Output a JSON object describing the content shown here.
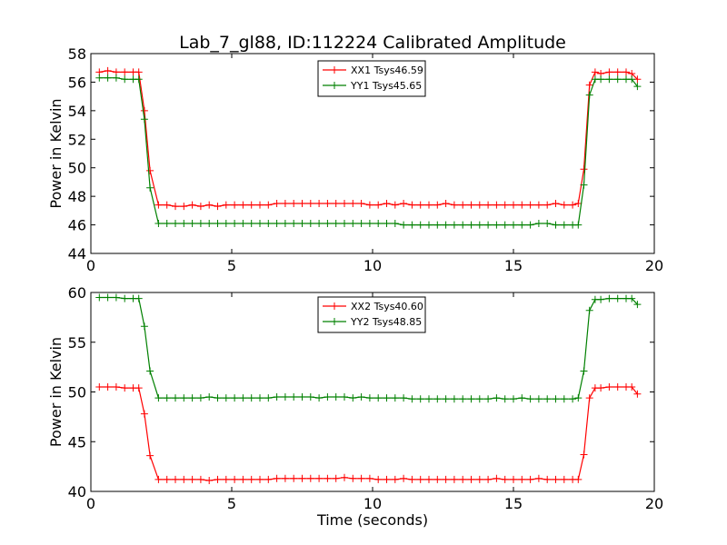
{
  "chart_data": [
    {
      "type": "line",
      "title": "Lab_7_gl88, ID:112224 Calibrated Amplitude",
      "xlabel": "",
      "ylabel": "Power in Kelvin",
      "xlim": [
        0,
        20
      ],
      "ylim": [
        44,
        58
      ],
      "xticks": [
        0,
        5,
        10,
        15,
        20
      ],
      "yticks": [
        44,
        46,
        48,
        50,
        52,
        54,
        56,
        58
      ],
      "legend_position": "top-center",
      "grid": false,
      "x": [
        0.3,
        0.6,
        0.9,
        1.2,
        1.5,
        1.7,
        1.9,
        2.1,
        2.4,
        2.7,
        3.0,
        3.3,
        3.6,
        3.9,
        4.2,
        4.5,
        4.8,
        5.1,
        5.4,
        5.7,
        6.0,
        6.3,
        6.6,
        6.9,
        7.2,
        7.5,
        7.8,
        8.1,
        8.4,
        8.7,
        9.0,
        9.3,
        9.6,
        9.9,
        10.2,
        10.5,
        10.8,
        11.1,
        11.4,
        11.7,
        12.0,
        12.3,
        12.6,
        12.9,
        13.2,
        13.5,
        13.8,
        14.1,
        14.4,
        14.7,
        15.0,
        15.3,
        15.6,
        15.9,
        16.2,
        16.5,
        16.8,
        17.1,
        17.3,
        17.5,
        17.7,
        17.9,
        18.1,
        18.4,
        18.7,
        19.0,
        19.2,
        19.4
      ],
      "series": [
        {
          "name": "XX1 Tsys46.59",
          "color": "#ff0000",
          "values": [
            56.7,
            56.8,
            56.7,
            56.7,
            56.7,
            56.7,
            54.0,
            49.8,
            47.4,
            47.4,
            47.3,
            47.3,
            47.4,
            47.3,
            47.4,
            47.3,
            47.4,
            47.4,
            47.4,
            47.4,
            47.4,
            47.4,
            47.5,
            47.5,
            47.5,
            47.5,
            47.5,
            47.5,
            47.5,
            47.5,
            47.5,
            47.5,
            47.5,
            47.4,
            47.4,
            47.5,
            47.4,
            47.5,
            47.4,
            47.4,
            47.4,
            47.4,
            47.5,
            47.4,
            47.4,
            47.4,
            47.4,
            47.4,
            47.4,
            47.4,
            47.4,
            47.4,
            47.4,
            47.4,
            47.4,
            47.5,
            47.4,
            47.4,
            47.5,
            49.9,
            55.8,
            56.7,
            56.6,
            56.7,
            56.7,
            56.7,
            56.6,
            56.2
          ]
        },
        {
          "name": "YY1 Tsys45.65",
          "color": "#008000",
          "values": [
            56.3,
            56.3,
            56.3,
            56.2,
            56.2,
            56.2,
            53.4,
            48.6,
            46.1,
            46.1,
            46.1,
            46.1,
            46.1,
            46.1,
            46.1,
            46.1,
            46.1,
            46.1,
            46.1,
            46.1,
            46.1,
            46.1,
            46.1,
            46.1,
            46.1,
            46.1,
            46.1,
            46.1,
            46.1,
            46.1,
            46.1,
            46.1,
            46.1,
            46.1,
            46.1,
            46.1,
            46.1,
            46.0,
            46.0,
            46.0,
            46.0,
            46.0,
            46.0,
            46.0,
            46.0,
            46.0,
            46.0,
            46.0,
            46.0,
            46.0,
            46.0,
            46.0,
            46.0,
            46.1,
            46.1,
            46.0,
            46.0,
            46.0,
            46.0,
            48.8,
            55.1,
            56.2,
            56.2,
            56.2,
            56.2,
            56.2,
            56.2,
            55.7
          ]
        }
      ]
    },
    {
      "type": "line",
      "title": "",
      "xlabel": "Time (seconds)",
      "ylabel": "Power in Kelvin",
      "xlim": [
        0,
        20
      ],
      "ylim": [
        40,
        60
      ],
      "xticks": [
        0,
        5,
        10,
        15,
        20
      ],
      "yticks": [
        40,
        45,
        50,
        55,
        60
      ],
      "legend_position": "top-center",
      "grid": false,
      "x": [
        0.3,
        0.6,
        0.9,
        1.2,
        1.5,
        1.7,
        1.9,
        2.1,
        2.4,
        2.7,
        3.0,
        3.3,
        3.6,
        3.9,
        4.2,
        4.5,
        4.8,
        5.1,
        5.4,
        5.7,
        6.0,
        6.3,
        6.6,
        6.9,
        7.2,
        7.5,
        7.8,
        8.1,
        8.4,
        8.7,
        9.0,
        9.3,
        9.6,
        9.9,
        10.2,
        10.5,
        10.8,
        11.1,
        11.4,
        11.7,
        12.0,
        12.3,
        12.6,
        12.9,
        13.2,
        13.5,
        13.8,
        14.1,
        14.4,
        14.7,
        15.0,
        15.3,
        15.6,
        15.9,
        16.2,
        16.5,
        16.8,
        17.1,
        17.3,
        17.5,
        17.7,
        17.9,
        18.1,
        18.4,
        18.7,
        19.0,
        19.2,
        19.4
      ],
      "series": [
        {
          "name": "XX2 Tsys40.60",
          "color": "#ff0000",
          "values": [
            50.5,
            50.5,
            50.5,
            50.4,
            50.4,
            50.4,
            47.8,
            43.6,
            41.2,
            41.2,
            41.2,
            41.2,
            41.2,
            41.2,
            41.1,
            41.2,
            41.2,
            41.2,
            41.2,
            41.2,
            41.2,
            41.2,
            41.3,
            41.3,
            41.3,
            41.3,
            41.3,
            41.3,
            41.3,
            41.3,
            41.4,
            41.3,
            41.3,
            41.3,
            41.2,
            41.2,
            41.2,
            41.3,
            41.2,
            41.2,
            41.2,
            41.2,
            41.2,
            41.2,
            41.2,
            41.2,
            41.2,
            41.2,
            41.3,
            41.2,
            41.2,
            41.2,
            41.2,
            41.3,
            41.2,
            41.2,
            41.2,
            41.2,
            41.2,
            43.7,
            49.4,
            50.4,
            50.4,
            50.5,
            50.5,
            50.5,
            50.5,
            49.8
          ]
        },
        {
          "name": "YY2 Tsys48.85",
          "color": "#008000",
          "values": [
            59.5,
            59.5,
            59.5,
            59.4,
            59.4,
            59.4,
            56.6,
            52.1,
            49.4,
            49.4,
            49.4,
            49.4,
            49.4,
            49.4,
            49.5,
            49.4,
            49.4,
            49.4,
            49.4,
            49.4,
            49.4,
            49.4,
            49.5,
            49.5,
            49.5,
            49.5,
            49.5,
            49.4,
            49.5,
            49.5,
            49.5,
            49.4,
            49.5,
            49.4,
            49.4,
            49.4,
            49.4,
            49.4,
            49.3,
            49.3,
            49.3,
            49.3,
            49.3,
            49.3,
            49.3,
            49.3,
            49.3,
            49.3,
            49.4,
            49.3,
            49.3,
            49.4,
            49.3,
            49.3,
            49.3,
            49.3,
            49.3,
            49.3,
            49.4,
            52.1,
            58.2,
            59.3,
            59.3,
            59.4,
            59.4,
            59.4,
            59.4,
            58.8
          ]
        }
      ]
    }
  ]
}
